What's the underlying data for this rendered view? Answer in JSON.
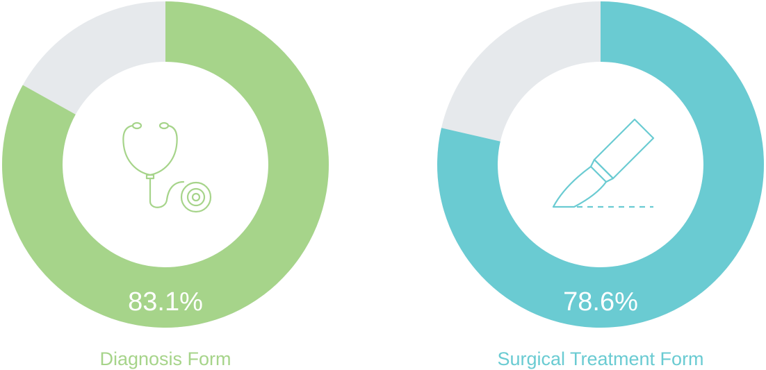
{
  "chart_data": [
    {
      "type": "donut",
      "title": "Diagnosis Form",
      "values": [
        83.1
      ],
      "value_labels": [
        "83.1%"
      ],
      "color": "#a6d48a"
    },
    {
      "type": "donut",
      "title": "Surgical Treatment Form",
      "values": [
        78.6
      ],
      "value_labels": [
        "78.6%"
      ],
      "color": "#6acbd2"
    }
  ]
}
